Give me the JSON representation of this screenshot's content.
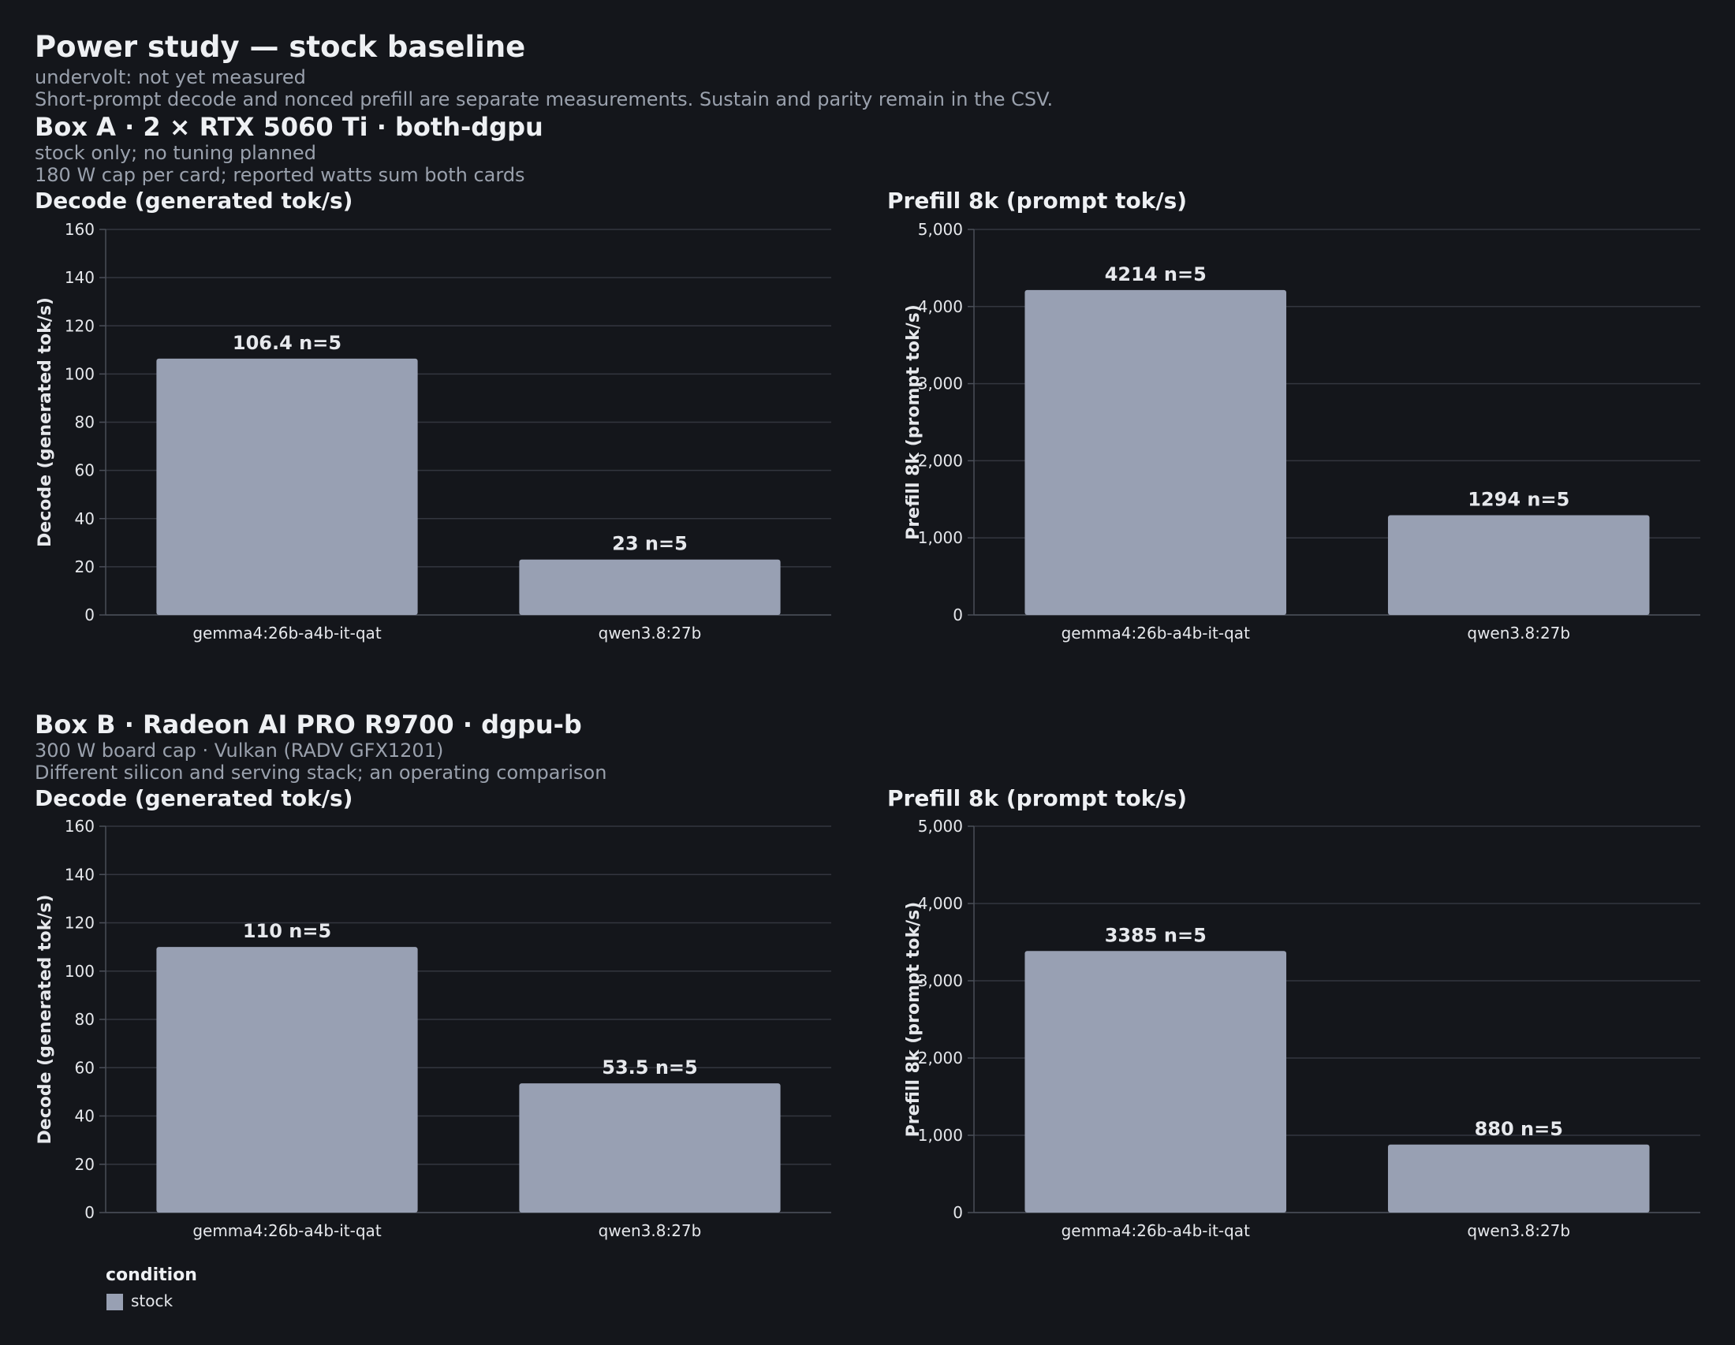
{
  "header": {
    "title": "Power study — stock baseline",
    "subtitle_1": "undervolt: not yet measured",
    "subtitle_2": "Short-prompt decode and nonced prefill are separate measurements. Sustain and parity remain in the CSV."
  },
  "box_a": {
    "title": "Box A · 2 × RTX 5060 Ti · both-dgpu",
    "note_1": "stock only; no tuning planned",
    "note_2": "180 W cap per card; reported watts sum both cards"
  },
  "box_b": {
    "title": "Box B · Radeon AI PRO R9700 · dgpu-b",
    "note_1": "300 W board cap · Vulkan (RADV GFX1201)",
    "note_2": "Different silicon and serving stack; an operating comparison"
  },
  "legend": {
    "title": "condition",
    "label": "stock",
    "color": "#98a0b3"
  },
  "colors": {
    "bar": "#98a0b3",
    "grid": "#33363f",
    "axis": "#4a4e58",
    "text": "#e6e8ec",
    "background": "#14161b"
  },
  "chart_data": [
    {
      "type": "bar",
      "title": "Decode (generated tok/s)",
      "ylabel": "Decode (generated tok/s)",
      "categories": [
        "gemma4:26b-a4b-it-qat",
        "qwen3.8:27b"
      ],
      "series": [
        {
          "name": "stock",
          "values": [
            106.4,
            23
          ]
        }
      ],
      "data_labels": [
        "106.4 n=5",
        "23 n=5"
      ],
      "ylim": [
        0,
        160
      ],
      "yticks": [
        0,
        20,
        40,
        60,
        80,
        100,
        120,
        140,
        160
      ],
      "ytick_labels": [
        "0",
        "20",
        "40",
        "60",
        "80",
        "100",
        "120",
        "140",
        "160"
      ],
      "grid": true
    },
    {
      "type": "bar",
      "title": "Prefill 8k (prompt tok/s)",
      "ylabel": "Prefill 8k (prompt tok/s)",
      "categories": [
        "gemma4:26b-a4b-it-qat",
        "qwen3.8:27b"
      ],
      "series": [
        {
          "name": "stock",
          "values": [
            4214,
            1294
          ]
        }
      ],
      "data_labels": [
        "4214 n=5",
        "1294 n=5"
      ],
      "ylim": [
        0,
        5000
      ],
      "yticks": [
        0,
        1000,
        2000,
        3000,
        4000,
        5000
      ],
      "ytick_labels": [
        "0",
        "1,000",
        "2,000",
        "3,000",
        "4,000",
        "5,000"
      ],
      "grid": true
    },
    {
      "type": "bar",
      "title": "Decode (generated tok/s)",
      "ylabel": "Decode (generated tok/s)",
      "categories": [
        "gemma4:26b-a4b-it-qat",
        "qwen3.8:27b"
      ],
      "series": [
        {
          "name": "stock",
          "values": [
            110,
            53.5
          ]
        }
      ],
      "data_labels": [
        "110 n=5",
        "53.5 n=5"
      ],
      "ylim": [
        0,
        160
      ],
      "yticks": [
        0,
        20,
        40,
        60,
        80,
        100,
        120,
        140,
        160
      ],
      "ytick_labels": [
        "0",
        "20",
        "40",
        "60",
        "80",
        "100",
        "120",
        "140",
        "160"
      ],
      "grid": true
    },
    {
      "type": "bar",
      "title": "Prefill 8k (prompt tok/s)",
      "ylabel": "Prefill 8k (prompt tok/s)",
      "categories": [
        "gemma4:26b-a4b-it-qat",
        "qwen3.8:27b"
      ],
      "series": [
        {
          "name": "stock",
          "values": [
            3385,
            880
          ]
        }
      ],
      "data_labels": [
        "3385 n=5",
        "880 n=5"
      ],
      "ylim": [
        0,
        5000
      ],
      "yticks": [
        0,
        1000,
        2000,
        3000,
        4000,
        5000
      ],
      "ytick_labels": [
        "0",
        "1,000",
        "2,000",
        "3,000",
        "4,000",
        "5,000"
      ],
      "grid": true
    }
  ]
}
